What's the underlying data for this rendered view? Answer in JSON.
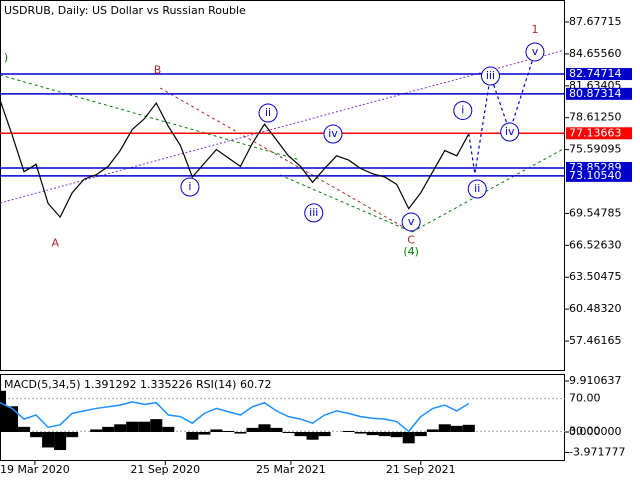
{
  "chart_data": {
    "type": "line",
    "title": "USDRUB, Daily:  US Dollar vs Russian Rouble",
    "xlim": [
      0,
      47
    ],
    "xticks": [
      {
        "value": 2.9,
        "label": "19 Mar 2020"
      },
      {
        "value": 13.75,
        "label": "21 Sep 2020"
      },
      {
        "value": 24.2,
        "label": "25 Mar 2021"
      },
      {
        "value": 35,
        "label": "21 Sep 2021"
      }
    ],
    "ylim": [
      54.72,
      89.76
    ],
    "yticks": [
      87.67715,
      {
        "value": 84.6556,
        "label": "84.65560"
      },
      81.63405,
      {
        "value": 78.6125,
        "label": "78.61250"
      },
      75.59095,
      69.54785,
      {
        "value": 66.5263,
        "label": "66.52630"
      },
      63.50475,
      {
        "value": 60.4832,
        "label": "60.48320"
      },
      57.46165
    ],
    "series": [
      {
        "color": "#000000",
        "values": [
          80.3,
          77.0,
          73.5,
          74.2,
          70.5,
          69.2,
          71.5,
          72.8,
          73.2,
          74.0,
          75.5,
          77.5,
          78.5,
          80.0,
          77.8,
          76.0,
          73.0,
          74.3,
          75.6,
          74.8,
          74.0,
          76.2,
          78.0,
          76.5,
          75.0,
          74.0,
          72.5,
          73.8,
          75.0,
          74.6,
          73.8,
          73.3,
          73.0,
          72.3,
          70.0,
          71.5,
          73.5,
          75.5,
          75.0,
          77.1
        ]
      },
      {
        "color": "#0000cd",
        "dashed": true,
        "x": [
          39,
          39.5,
          40.8,
          42.4,
          44.5
        ],
        "values": [
          77.1,
          73.3,
          82.6,
          77.3,
          84.8
        ]
      }
    ],
    "levels": [
      {
        "value": 82.74714,
        "label": "82.74714",
        "color": "#0000cd"
      },
      {
        "value": 80.87314,
        "label": "80.87314",
        "color": "#0000cd"
      },
      {
        "value": 77.13663,
        "label": "77.13663",
        "color": "#ff0000"
      },
      {
        "value": 73.85289,
        "label": "73.85289",
        "color": "#0000cd"
      },
      {
        "value": 73.1054,
        "label": "73.10540",
        "color": "#0000cd"
      }
    ],
    "annotations": [
      {
        "text": "A",
        "x": 4.6,
        "y": 66.7,
        "color": "#a52a2a"
      },
      {
        "text": "B",
        "x": 13.1,
        "y": 83.1,
        "color": "#a52a2a"
      },
      {
        "text": "C",
        "x": 34.2,
        "y": 67.0,
        "color": "#a52a2a"
      },
      {
        "text": "(4)",
        "x": 34.2,
        "y": 65.9,
        "color": "#008000"
      },
      {
        "text": ")",
        "x": 0.5,
        "y": 84.27,
        "color": "#008000"
      },
      {
        "text": "1",
        "x": 44.5,
        "y": 86.92,
        "color": "#a52a2a"
      },
      {
        "text": "i",
        "x": 15.8,
        "y": 72.05,
        "color": "#0000cd",
        "circle": true
      },
      {
        "text": "ii",
        "x": 22.3,
        "y": 79.06,
        "color": "#0000cd",
        "circle": true
      },
      {
        "text": "iii",
        "x": 26.1,
        "y": 69.6,
        "color": "#0000cd",
        "circle": true
      },
      {
        "text": "iv",
        "x": 27.7,
        "y": 77.07,
        "color": "#0000cd",
        "circle": true
      },
      {
        "text": "v",
        "x": 34.2,
        "y": 68.74,
        "color": "#0000cd",
        "circle": true
      },
      {
        "text": "i",
        "x": 38.5,
        "y": 79.3,
        "color": "#0000cd",
        "circle": true
      },
      {
        "text": "ii",
        "x": 39.7,
        "y": 71.86,
        "color": "#0000cd",
        "circle": true
      },
      {
        "text": "iii",
        "x": 40.8,
        "y": 82.56,
        "color": "#0000cd",
        "circle": true
      },
      {
        "text": "iv",
        "x": 42.4,
        "y": 77.26,
        "color": "#0000cd",
        "circle": true
      },
      {
        "text": "v",
        "x": 44.5,
        "y": 84.84,
        "color": "#0000cd",
        "circle": true
      }
    ],
    "indicator": {
      "title": "MACD(5,34,5) 1.391292 1.335226 RSI(14) 60.72",
      "macd_lim": [
        -4.66,
        11.27
      ],
      "macd_ticks": [
        {
          "value": 9.910637,
          "label": "9.910637"
        },
        {
          "value": 0,
          "label": "0.000000"
        },
        {
          "value": -3.971777,
          "label": "-3.971777"
        }
      ],
      "rsi_lim": [
        0,
        100
      ],
      "rsi_ticks": [
        {
          "value": 70,
          "label": "70.00"
        },
        {
          "value": 30,
          "label": "30.00"
        }
      ],
      "macd": [
        8,
        5,
        1,
        -1,
        -3,
        -3.5,
        -1,
        0,
        0.5,
        1,
        1.5,
        2,
        2,
        2.5,
        1,
        0,
        -1.5,
        -0.5,
        0.5,
        0.2,
        -0.3,
        0.8,
        1.5,
        0.8,
        -0.2,
        -0.8,
        -1.5,
        -0.8,
        0,
        0.2,
        -0.3,
        -0.6,
        -0.8,
        -1,
        -2.2,
        -0.8,
        0.5,
        1.5,
        1.2,
        1.4
      ],
      "rsi": [
        65,
        58,
        45,
        50,
        35,
        38,
        52,
        55,
        58,
        60,
        62,
        66,
        63,
        65,
        50,
        48,
        40,
        52,
        58,
        54,
        50,
        60,
        65,
        55,
        48,
        45,
        40,
        50,
        55,
        52,
        48,
        46,
        45,
        42,
        30,
        48,
        58,
        62,
        55,
        64
      ],
      "rsi_color": "#1e90ff"
    }
  }
}
